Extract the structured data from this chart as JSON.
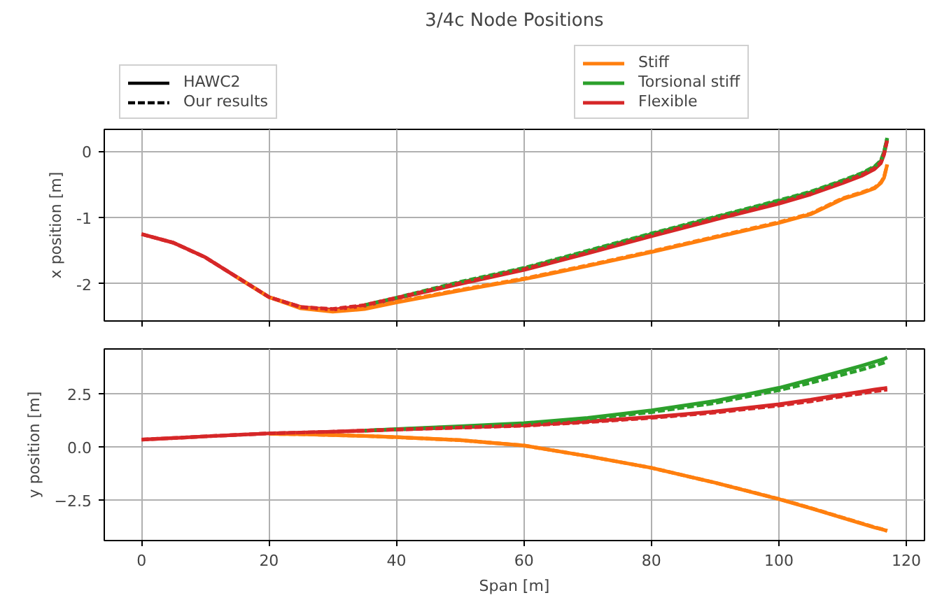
{
  "chart_data": [
    {
      "type": "line",
      "title": "3/4c Node Positions",
      "ylabel": "x position [m]",
      "xlim": [
        -5.85,
        122.85
      ],
      "ylim": [
        -2.56,
        0.33
      ],
      "xticks": [
        0,
        20,
        40,
        60,
        80,
        100,
        120
      ],
      "yticks": [
        -2,
        -1,
        0
      ],
      "grid": true,
      "legend": "top",
      "tick_labels": "y",
      "x": [
        0,
        5,
        10,
        15,
        20,
        25,
        30,
        35,
        40,
        50,
        60,
        70,
        80,
        90,
        100,
        105,
        110,
        113,
        115,
        116,
        116.5,
        117
      ],
      "series": [
        {
          "name": "HAWC2",
          "color": "#000000",
          "line_style": "solid",
          "values": [
            null,
            null,
            null,
            null,
            null,
            null,
            null,
            null,
            null,
            null,
            null,
            null,
            null,
            null,
            null,
            null,
            null,
            null,
            null,
            null,
            null,
            null
          ]
        },
        {
          "name": "Our results",
          "color": "#000000",
          "line_style": "dashed",
          "values": [
            null,
            null,
            null,
            null,
            null,
            null,
            null,
            null,
            null,
            null,
            null,
            null,
            null,
            null,
            null,
            null,
            null,
            null,
            null,
            null,
            null,
            null
          ]
        },
        {
          "name": "Stiff",
          "color": "#ff7f0e",
          "line_style": "solid",
          "values": [
            null,
            null,
            null,
            -1.9,
            -2.2,
            -2.37,
            -2.42,
            -2.38,
            -2.28,
            -2.1,
            -1.93,
            -1.73,
            -1.52,
            -1.3,
            -1.08,
            -0.95,
            -0.72,
            -0.63,
            -0.56,
            -0.48,
            -0.4,
            -0.2
          ]
        },
        {
          "name": "Torsional stiff",
          "color": "#2ca02c",
          "line_style": "solid",
          "values": [
            null,
            null,
            null,
            null,
            null,
            null,
            null,
            -2.33,
            -2.22,
            -1.98,
            -1.77,
            -1.51,
            -1.25,
            -1.0,
            -0.75,
            -0.62,
            -0.45,
            -0.34,
            -0.24,
            -0.15,
            -0.02,
            0.2
          ]
        },
        {
          "name": "Flexible",
          "color": "#d62728",
          "line_style": "solid",
          "values": [
            -1.25,
            -1.38,
            -1.6,
            -1.9,
            -2.2,
            -2.35,
            -2.39,
            -2.33,
            -2.22,
            -2.0,
            -1.79,
            -1.54,
            -1.28,
            -1.03,
            -0.79,
            -0.65,
            -0.48,
            -0.37,
            -0.27,
            -0.18,
            -0.05,
            0.17
          ]
        },
        {
          "color": "#ff7f0e",
          "line_style": "dashed",
          "values": [
            null,
            null,
            null,
            -1.9,
            -2.2,
            -2.36,
            -2.41,
            -2.37,
            -2.27,
            -2.09,
            -1.92,
            -1.72,
            -1.51,
            -1.29,
            -1.07,
            -0.94,
            -0.71,
            -0.62,
            -0.55,
            -0.47,
            -0.39,
            -0.2
          ]
        },
        {
          "color": "#2ca02c",
          "line_style": "dashed",
          "values": [
            null,
            null,
            null,
            null,
            null,
            null,
            null,
            -2.32,
            -2.21,
            -1.97,
            -1.76,
            -1.5,
            -1.24,
            -0.99,
            -0.74,
            -0.61,
            -0.44,
            -0.33,
            -0.23,
            -0.14,
            -0.01,
            0.2
          ]
        },
        {
          "color": "#d62728",
          "line_style": "dashed",
          "values": [
            -1.25,
            -1.38,
            -1.6,
            -1.9,
            -2.2,
            -2.35,
            -2.38,
            -2.32,
            -2.21,
            -1.99,
            -1.78,
            -1.53,
            -1.27,
            -1.02,
            -0.78,
            -0.64,
            -0.47,
            -0.36,
            -0.26,
            -0.17,
            -0.04,
            0.17
          ]
        }
      ]
    },
    {
      "type": "line",
      "xlabel": "Span [m]",
      "ylabel": "y position [m]",
      "xlim": [
        -5.85,
        122.85
      ],
      "ylim": [
        -4.42,
        4.59
      ],
      "xticks": [
        0,
        20,
        40,
        60,
        80,
        100,
        120
      ],
      "yticks": [
        {
          "value": -2.5,
          "label": "−2.5"
        },
        {
          "value": 0,
          "label": "0.0"
        },
        {
          "value": 2.5,
          "label": "2.5"
        }
      ],
      "grid": true,
      "x": [
        0,
        5,
        10,
        15,
        20,
        25,
        30,
        35,
        40,
        50,
        60,
        70,
        80,
        90,
        100,
        105,
        110,
        113,
        115,
        116,
        116.5,
        117
      ],
      "series": [
        {
          "color": "#ff7f0e",
          "line_style": "solid",
          "values": [
            null,
            null,
            null,
            null,
            0.6,
            0.58,
            0.54,
            0.5,
            0.44,
            0.3,
            0.05,
            -0.45,
            -1.0,
            -1.7,
            -2.47,
            -2.9,
            -3.35,
            -3.62,
            -3.8,
            -3.88,
            -3.92,
            -3.97
          ]
        },
        {
          "color": "#2ca02c",
          "line_style": "solid",
          "values": [
            null,
            null,
            null,
            null,
            null,
            null,
            null,
            0.75,
            0.82,
            0.95,
            1.1,
            1.35,
            1.7,
            2.15,
            2.76,
            3.15,
            3.55,
            3.8,
            3.98,
            4.07,
            4.12,
            4.19
          ]
        },
        {
          "color": "#d62728",
          "line_style": "solid",
          "values": [
            0.33,
            0.4,
            0.48,
            0.55,
            0.62,
            0.66,
            0.7,
            0.75,
            0.8,
            0.9,
            1.0,
            1.18,
            1.39,
            1.65,
            1.99,
            2.2,
            2.45,
            2.58,
            2.68,
            2.72,
            2.74,
            2.76
          ]
        },
        {
          "color": "#ff7f0e",
          "line_style": "dashed",
          "values": [
            null,
            null,
            null,
            null,
            0.6,
            0.58,
            0.54,
            0.5,
            0.44,
            0.3,
            0.05,
            -0.45,
            -1.0,
            -1.7,
            -2.46,
            -2.89,
            -3.34,
            -3.61,
            -3.79,
            -3.87,
            -3.91,
            -3.96
          ]
        },
        {
          "color": "#2ca02c",
          "line_style": "dashed",
          "values": [
            null,
            null,
            null,
            null,
            null,
            null,
            null,
            0.75,
            0.81,
            0.93,
            1.07,
            1.3,
            1.62,
            2.05,
            2.65,
            3.0,
            3.38,
            3.62,
            3.8,
            3.9,
            3.95,
            4.0
          ]
        },
        {
          "color": "#d62728",
          "line_style": "dashed",
          "values": [
            0.33,
            0.4,
            0.48,
            0.55,
            0.62,
            0.66,
            0.7,
            0.75,
            0.8,
            0.89,
            0.98,
            1.15,
            1.35,
            1.6,
            1.93,
            2.13,
            2.37,
            2.5,
            2.6,
            2.64,
            2.66,
            2.68
          ]
        }
      ]
    }
  ]
}
